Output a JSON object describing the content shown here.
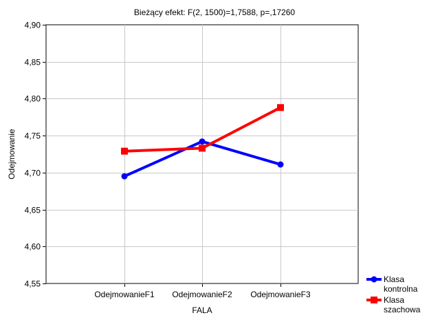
{
  "chart_data": {
    "type": "line",
    "title": "Bieżący efekt: F(2, 1500)=1,7588, p=,17260",
    "xlabel": "FALA",
    "ylabel": "Odejmowanie",
    "categories": [
      "OdejmowanieF1",
      "OdejmowanieF2",
      "OdejmowanieF3"
    ],
    "ylim": [
      4.55,
      4.9
    ],
    "yticks": [
      "4,55",
      "4,60",
      "4,65",
      "4,70",
      "4,75",
      "4,80",
      "4,85",
      "4,90"
    ],
    "ytick_values": [
      4.55,
      4.6,
      4.65,
      4.7,
      4.75,
      4.8,
      4.85,
      4.9
    ],
    "grid": true,
    "legend_position": "bottom-right",
    "series": [
      {
        "name": "Klasa kontrolna",
        "legend_lines": [
          "Klasa",
          "kontrolna"
        ],
        "color": "#0000ff",
        "marker": "circle",
        "values": [
          4.695,
          4.742,
          4.711
        ]
      },
      {
        "name": "Klasa szachowa",
        "legend_lines": [
          "Klasa",
          "szachowa"
        ],
        "color": "#ff0000",
        "marker": "square",
        "values": [
          4.729,
          4.733,
          4.788
        ]
      }
    ]
  }
}
